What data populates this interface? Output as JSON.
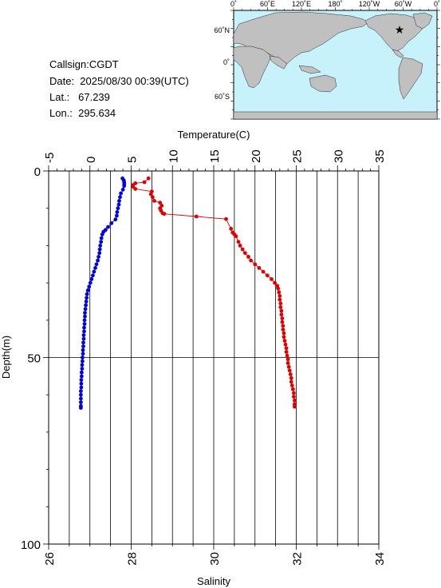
{
  "info": {
    "callsign": "Callsign:CGDT",
    "date": "Date:  2025/08/30 00:39(UTC)",
    "lat": "Lat.:   67.239",
    "lon": "Lon.:  295.634"
  },
  "map": {
    "lon_labels": [
      "0˚",
      "60˚E",
      "120˚E",
      "180˚",
      "120˚W",
      "60˚W",
      "0˚"
    ],
    "lat_labels": [
      "60˚N",
      "0˚",
      "60˚S"
    ],
    "ocean_color": "#c8f2fb",
    "land_color": "#c0c0c0",
    "marker_color": "#e00000"
  },
  "chart_data": {
    "type": "line",
    "temp_axis": {
      "label": "Temperature(C)",
      "range": [
        -5,
        35
      ],
      "ticks": [
        "-5",
        "0",
        "5",
        "10",
        "15",
        "20",
        "25",
        "30",
        "35"
      ]
    },
    "sal_axis": {
      "label": "Salinity",
      "range": [
        26,
        34
      ],
      "ticks": [
        "26",
        "28",
        "30",
        "32",
        "34"
      ]
    },
    "depth_axis": {
      "label": "Depth(m)",
      "range": [
        0,
        100
      ],
      "inverted": true,
      "ticks": [
        "0",
        "50",
        "100"
      ]
    },
    "grid": true,
    "series": [
      {
        "variable": "temperature",
        "color": "#e00000",
        "points": [
          [
            7.1,
            2
          ],
          [
            6.6,
            3
          ],
          [
            5.5,
            3.3
          ],
          [
            5.2,
            3.8
          ],
          [
            5.2,
            4.2
          ],
          [
            5.5,
            4.8
          ],
          [
            7.5,
            5.5
          ],
          [
            7.4,
            6.2
          ],
          [
            7.6,
            7
          ],
          [
            7.8,
            8
          ],
          [
            8.5,
            8.5
          ],
          [
            8.7,
            9.3
          ],
          [
            8.5,
            10
          ],
          [
            8.6,
            10.6
          ],
          [
            8.8,
            11.3
          ],
          [
            9.0,
            11.5
          ],
          [
            12.9,
            12.2
          ],
          [
            16.5,
            12.9
          ],
          [
            17.1,
            15.5
          ],
          [
            17.3,
            16.5
          ],
          [
            17.5,
            17
          ],
          [
            17.7,
            17.5
          ],
          [
            18.0,
            19
          ],
          [
            18.2,
            20
          ],
          [
            18.5,
            21
          ],
          [
            18.8,
            22
          ],
          [
            19.2,
            23
          ],
          [
            19.5,
            24
          ],
          [
            20.0,
            25
          ],
          [
            20.5,
            26
          ],
          [
            21.0,
            27
          ],
          [
            21.5,
            28
          ],
          [
            22.0,
            29
          ],
          [
            22.4,
            30
          ],
          [
            22.7,
            30.8
          ],
          [
            22.8,
            31.5
          ],
          [
            22.9,
            32.5
          ],
          [
            23.0,
            33.5
          ],
          [
            23.0,
            34.5
          ],
          [
            23.1,
            35.5
          ],
          [
            23.1,
            36.5
          ],
          [
            23.2,
            37.5
          ],
          [
            23.2,
            38.5
          ],
          [
            23.3,
            39.5
          ],
          [
            23.3,
            40.5
          ],
          [
            23.4,
            41.5
          ],
          [
            23.4,
            42.5
          ],
          [
            23.5,
            43.5
          ],
          [
            23.5,
            44.5
          ],
          [
            23.6,
            45.5
          ],
          [
            23.7,
            46.5
          ],
          [
            23.8,
            47.5
          ],
          [
            23.8,
            48.5
          ],
          [
            23.9,
            49.5
          ],
          [
            24.0,
            50.5
          ],
          [
            24.0,
            51.5
          ],
          [
            24.1,
            52.5
          ],
          [
            24.2,
            53.5
          ],
          [
            24.3,
            54.5
          ],
          [
            24.4,
            55.5
          ],
          [
            24.4,
            56.5
          ],
          [
            24.5,
            57.5
          ],
          [
            24.6,
            58.5
          ],
          [
            24.7,
            59.5
          ],
          [
            24.7,
            60.5
          ],
          [
            24.8,
            61.5
          ],
          [
            24.8,
            62.5
          ],
          [
            24.8,
            63.2
          ]
        ]
      },
      {
        "variable": "salinity",
        "color": "#0000e0",
        "points": [
          [
            27.79,
            2
          ],
          [
            27.82,
            2.5
          ],
          [
            27.83,
            3
          ],
          [
            27.83,
            3.5
          ],
          [
            27.83,
            4
          ],
          [
            27.8,
            5
          ],
          [
            27.75,
            6
          ],
          [
            27.73,
            7
          ],
          [
            27.71,
            8
          ],
          [
            27.7,
            9
          ],
          [
            27.68,
            10
          ],
          [
            27.66,
            11
          ],
          [
            27.65,
            12
          ],
          [
            27.62,
            13
          ],
          [
            27.52,
            14
          ],
          [
            27.44,
            15
          ],
          [
            27.38,
            15.8
          ],
          [
            27.33,
            16.3
          ],
          [
            27.3,
            17
          ],
          [
            27.28,
            18
          ],
          [
            27.27,
            19
          ],
          [
            27.25,
            20
          ],
          [
            27.24,
            21
          ],
          [
            27.23,
            22
          ],
          [
            27.21,
            23
          ],
          [
            27.19,
            24
          ],
          [
            27.16,
            25
          ],
          [
            27.13,
            26
          ],
          [
            27.1,
            27
          ],
          [
            27.07,
            28
          ],
          [
            27.04,
            29
          ],
          [
            27.01,
            30
          ],
          [
            26.98,
            31
          ],
          [
            26.95,
            32
          ],
          [
            26.93,
            33
          ],
          [
            26.92,
            34
          ],
          [
            26.91,
            35
          ],
          [
            26.9,
            36
          ],
          [
            26.89,
            37
          ],
          [
            26.88,
            38
          ],
          [
            26.88,
            39
          ],
          [
            26.87,
            40
          ],
          [
            26.87,
            41
          ],
          [
            26.86,
            42
          ],
          [
            26.86,
            43
          ],
          [
            26.85,
            44
          ],
          [
            26.85,
            45
          ],
          [
            26.84,
            46
          ],
          [
            26.84,
            47
          ],
          [
            26.83,
            48
          ],
          [
            26.83,
            49
          ],
          [
            26.82,
            50
          ],
          [
            26.82,
            51
          ],
          [
            26.81,
            52
          ],
          [
            26.81,
            53
          ],
          [
            26.8,
            54
          ],
          [
            26.8,
            55
          ],
          [
            26.79,
            56
          ],
          [
            26.79,
            57
          ],
          [
            26.79,
            58
          ],
          [
            26.78,
            59
          ],
          [
            26.78,
            60
          ],
          [
            26.78,
            61
          ],
          [
            26.78,
            62
          ],
          [
            26.78,
            63
          ],
          [
            26.78,
            63.5
          ]
        ]
      }
    ]
  }
}
